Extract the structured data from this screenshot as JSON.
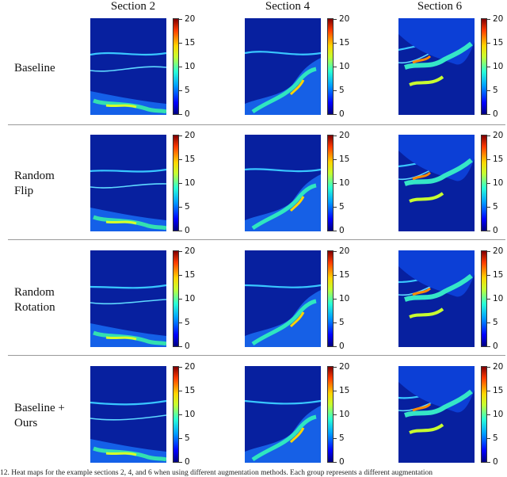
{
  "columns": [
    "Section 2",
    "Section 4",
    "Section 6"
  ],
  "rows": [
    {
      "label": [
        "Baseline"
      ]
    },
    {
      "label": [
        "Random",
        "Flip"
      ]
    },
    {
      "label": [
        "Random",
        "Rotation"
      ]
    },
    {
      "label": [
        "Baseline +",
        "Ours"
      ]
    }
  ],
  "colorbar": {
    "min": 0,
    "max": 20,
    "ticks": [
      "20",
      "15",
      "10",
      "5",
      "0"
    ]
  },
  "caption": "12.   Heat maps for the example sections 2, 4, and 6 when using different augmentation methods. Each group represents a different augmentation"
}
